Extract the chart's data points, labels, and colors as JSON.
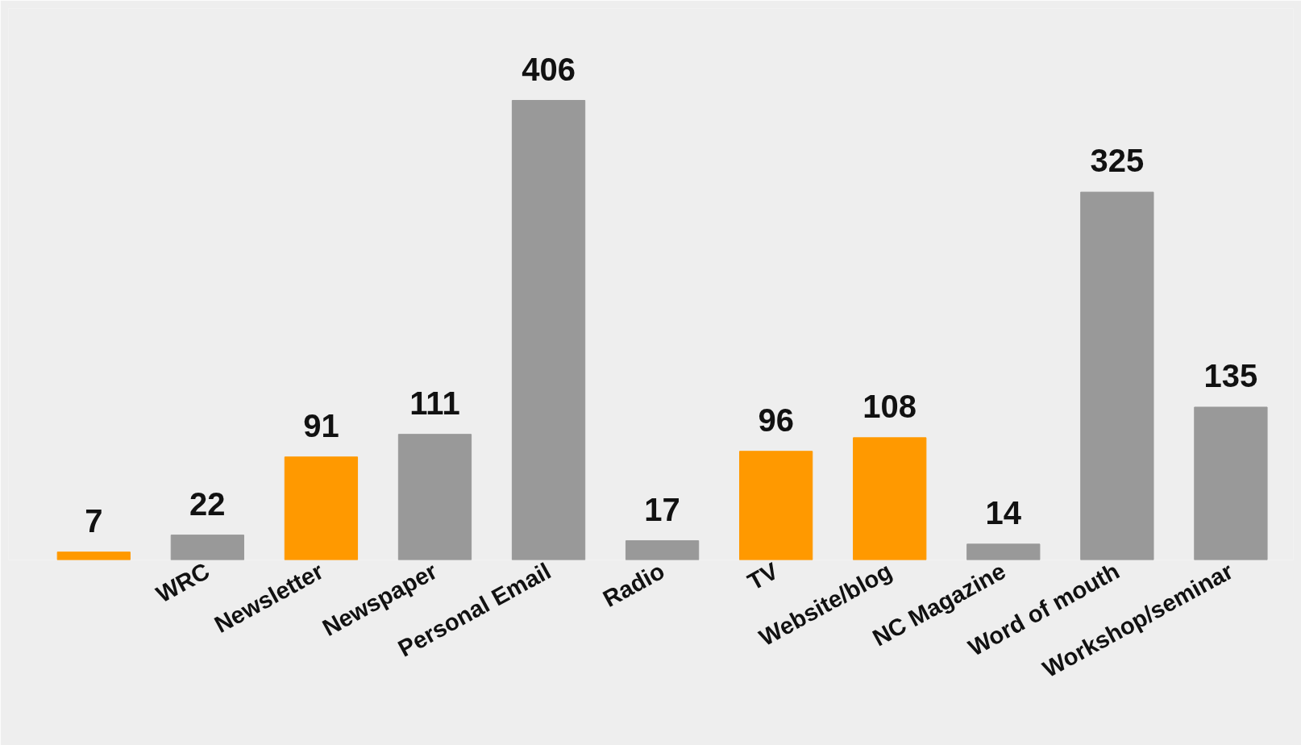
{
  "chart_data": {
    "type": "bar",
    "categories": [
      null,
      "WRC",
      "Newsletter",
      "Newspaper",
      "Personal Email",
      "Radio",
      "TV",
      "Website/blog",
      "NC Magazine",
      "Word of mouth",
      "Workshop/seminar"
    ],
    "values": [
      7,
      22,
      91,
      111,
      406,
      17,
      96,
      108,
      14,
      325,
      135
    ],
    "colors": [
      "#ff9900",
      "#999999",
      "#ff9900",
      "#999999",
      "#999999",
      "#999999",
      "#ff9900",
      "#ff9900",
      "#999999",
      "#999999",
      "#999999"
    ],
    "data_labels": true
  }
}
